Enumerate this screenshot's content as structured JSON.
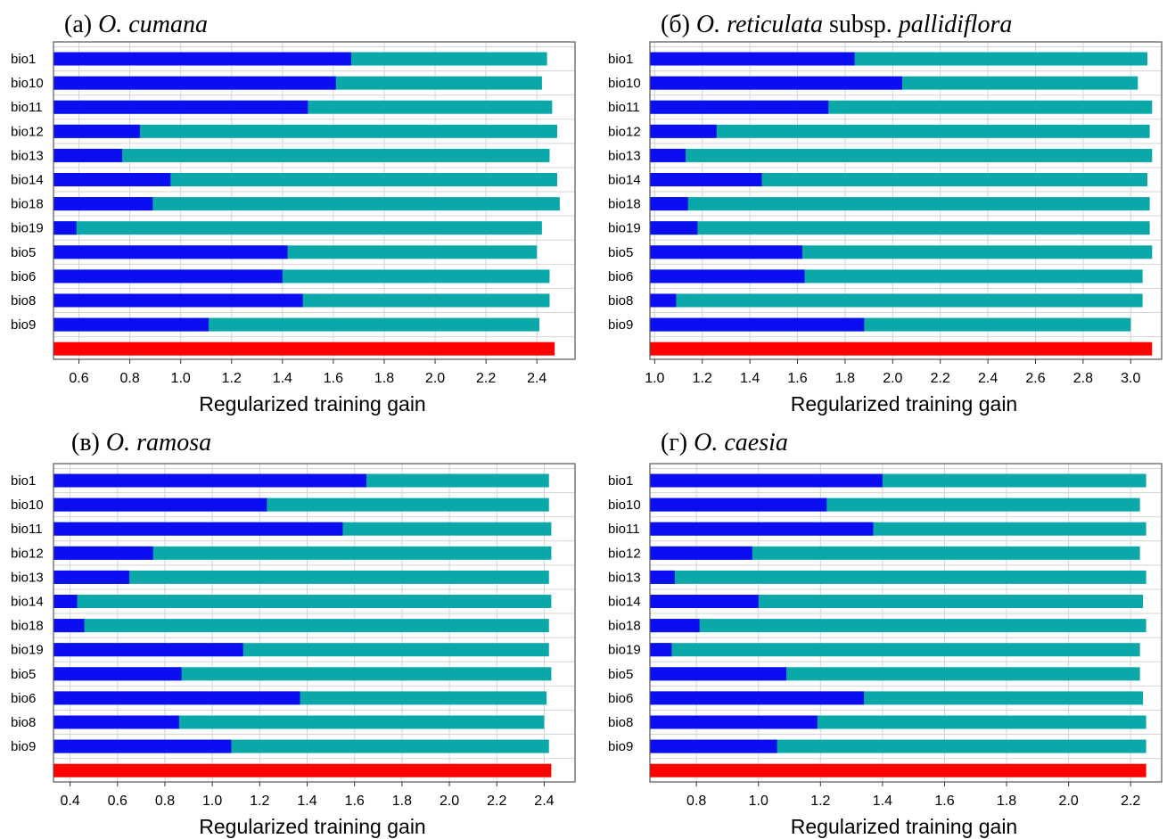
{
  "colors": {
    "without_variable": "#0a0ef0",
    "with_only_variable": "#0aa8a8",
    "all_variables": "#ff0000",
    "grid": "#d4d4d4",
    "frame": "#555555"
  },
  "chart_data": [
    {
      "type": "bar",
      "orientation": "horizontal",
      "stacked": false,
      "panel_label": "(а)",
      "species": "O. cumana",
      "species_suffix": "",
      "species_suffix_italic": "",
      "xlabel": "Regularized training gain",
      "xlim": [
        0.5,
        2.55
      ],
      "xticks": [
        "0.6",
        "0.8",
        "1.0",
        "1.2",
        "1.4",
        "1.6",
        "1.8",
        "2.0",
        "2.2",
        "2.4"
      ],
      "grid": true,
      "categories": [
        "bio1",
        "bio10",
        "bio11",
        "bio12",
        "bio13",
        "bio14",
        "bio18",
        "bio19",
        "bio5",
        "bio6",
        "bio8",
        "bio9"
      ],
      "series": [
        {
          "values": [
            1.67,
            1.61,
            1.5,
            0.84,
            0.77,
            0.96,
            0.89,
            0.59,
            1.42,
            1.4,
            1.48,
            1.11
          ]
        },
        {
          "values": [
            2.44,
            2.42,
            2.46,
            2.48,
            2.45,
            2.48,
            2.49,
            2.42,
            2.4,
            2.45,
            2.45,
            2.41
          ]
        }
      ],
      "total": 2.47
    },
    {
      "type": "bar",
      "orientation": "horizontal",
      "stacked": false,
      "panel_label": "(б)",
      "species": "O. reticulata",
      "species_suffix": "subsp.",
      "species_suffix_italic": "pallidiflora",
      "xlabel": "Regularized training gain",
      "xlim": [
        0.98,
        3.13
      ],
      "xticks": [
        "1.0",
        "1.2",
        "1.4",
        "1.6",
        "1.8",
        "2.0",
        "2.2",
        "2.4",
        "2.6",
        "2.8",
        "3.0"
      ],
      "grid": true,
      "categories": [
        "bio1",
        "bio10",
        "bio11",
        "bio12",
        "bio13",
        "bio14",
        "bio18",
        "bio19",
        "bio5",
        "bio6",
        "bio8",
        "bio9"
      ],
      "series": [
        {
          "values": [
            1.84,
            2.04,
            1.73,
            1.26,
            1.13,
            1.45,
            1.14,
            1.18,
            1.62,
            1.63,
            1.09,
            1.88
          ]
        },
        {
          "values": [
            3.07,
            3.03,
            3.09,
            3.08,
            3.09,
            3.07,
            3.08,
            3.08,
            3.09,
            3.05,
            3.05,
            3.0
          ]
        }
      ],
      "total": 3.09
    },
    {
      "type": "bar",
      "orientation": "horizontal",
      "stacked": false,
      "panel_label": "(в)",
      "species": "O. ramosa",
      "species_suffix": "",
      "species_suffix_italic": "",
      "xlabel": "Regularized training gain",
      "xlim": [
        0.33,
        2.53
      ],
      "xticks": [
        "0.4",
        "0.6",
        "0.8",
        "1.0",
        "1.2",
        "1.4",
        "1.6",
        "1.8",
        "2.0",
        "2.2",
        "2.4"
      ],
      "grid": true,
      "categories": [
        "bio1",
        "bio10",
        "bio11",
        "bio12",
        "bio13",
        "bio14",
        "bio18",
        "bio19",
        "bio5",
        "bio6",
        "bio8",
        "bio9"
      ],
      "series": [
        {
          "values": [
            1.65,
            1.23,
            1.55,
            0.75,
            0.65,
            0.43,
            0.46,
            1.13,
            0.87,
            1.37,
            0.86,
            1.08
          ]
        },
        {
          "values": [
            2.42,
            2.42,
            2.43,
            2.43,
            2.42,
            2.43,
            2.42,
            2.42,
            2.43,
            2.41,
            2.4,
            2.42
          ]
        }
      ],
      "total": 2.43
    },
    {
      "type": "bar",
      "orientation": "horizontal",
      "stacked": false,
      "panel_label": "(г)",
      "species": "O. caesia",
      "species_suffix": "",
      "species_suffix_italic": "",
      "xlabel": "Regularized training gain",
      "xlim": [
        0.65,
        2.3
      ],
      "xticks": [
        "0.8",
        "1.0",
        "1.2",
        "1.4",
        "1.6",
        "1.8",
        "2.0",
        "2.2"
      ],
      "grid": true,
      "categories": [
        "bio1",
        "bio10",
        "bio11",
        "bio12",
        "bio13",
        "bio14",
        "bio18",
        "bio19",
        "bio5",
        "bio6",
        "bio8",
        "bio9"
      ],
      "series": [
        {
          "values": [
            1.4,
            1.22,
            1.37,
            0.98,
            0.73,
            1.0,
            0.81,
            0.72,
            1.09,
            1.34,
            1.19,
            1.06
          ]
        },
        {
          "values": [
            2.25,
            2.23,
            2.25,
            2.23,
            2.25,
            2.24,
            2.25,
            2.23,
            2.23,
            2.24,
            2.25,
            2.25
          ]
        }
      ],
      "total": 2.25
    }
  ]
}
